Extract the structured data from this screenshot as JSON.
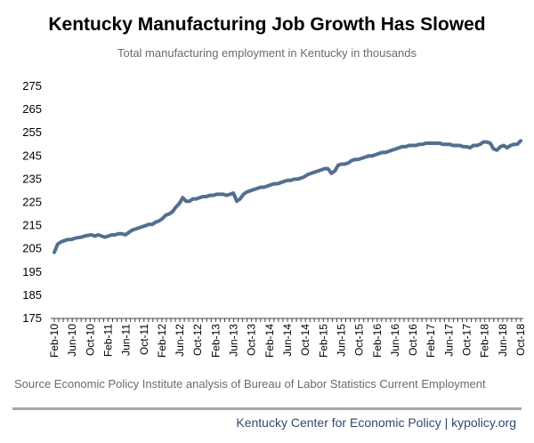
{
  "page": {
    "source": "Source Economic Policy Institute analysis of Bureau of Labor Statistics Current Employment",
    "footer": "Kentucky Center for Economic Policy | kypolicy.org"
  },
  "colors": {
    "line": "#536f90",
    "axis": "#404040",
    "text": "#000000",
    "subtitle": "#6b6b6b",
    "footer": "#2e4a6b"
  },
  "chart_data": {
    "type": "line",
    "title": "Kentucky Manufacturing Job Growth Has Slowed",
    "subtitle": "Total manufacturing employment in Kentucky in thousands",
    "xlabel": "",
    "ylabel": "",
    "ylim": [
      175,
      275
    ],
    "yticks": [
      175,
      185,
      195,
      205,
      215,
      225,
      235,
      245,
      255,
      265,
      275
    ],
    "grid": false,
    "legend": "none",
    "x_tick_labels": [
      "Feb-10",
      "Jun-10",
      "Oct-10",
      "Feb-11",
      "Jun-11",
      "Oct-11",
      "Feb-12",
      "Jun-12",
      "Oct-12",
      "Feb-13",
      "Jun-13",
      "Oct-13",
      "Feb-14",
      "Jun-14",
      "Oct-14",
      "Feb-15",
      "Jun-15",
      "Oct-15",
      "Feb-16",
      "Jun-16",
      "Oct-16",
      "Feb-17",
      "Jun-17",
      "Oct-17",
      "Feb-18",
      "Jun-18",
      "Oct-18"
    ],
    "series": [
      {
        "values": [
          203.5,
          207.0,
          208.0,
          208.5,
          209.0,
          209.0,
          209.5,
          209.8,
          210.0,
          210.5,
          210.8,
          211.0,
          210.5,
          211.0,
          210.5,
          210.0,
          210.5,
          211.0,
          211.0,
          211.5,
          211.5,
          211.0,
          212.0,
          213.0,
          213.5,
          214.0,
          214.5,
          215.0,
          215.5,
          215.5,
          216.5,
          217.0,
          218.0,
          219.5,
          220.0,
          221.0,
          223.0,
          224.5,
          227.0,
          225.5,
          225.5,
          226.5,
          226.5,
          227.0,
          227.5,
          227.5,
          228.0,
          228.0,
          228.5,
          228.5,
          228.5,
          228.0,
          228.5,
          229.0,
          225.5,
          226.5,
          228.5,
          229.5,
          230.0,
          230.5,
          231.0,
          231.5,
          231.5,
          232.0,
          232.5,
          233.0,
          233.0,
          233.5,
          234.0,
          234.5,
          234.5,
          235.0,
          235.0,
          235.5,
          236.0,
          237.0,
          237.5,
          238.0,
          238.5,
          239.0,
          239.5,
          239.5,
          237.5,
          238.5,
          241.0,
          241.5,
          241.5,
          242.0,
          243.0,
          243.5,
          243.5,
          244.0,
          244.5,
          245.0,
          245.0,
          245.5,
          246.0,
          246.5,
          246.5,
          247.0,
          247.5,
          248.0,
          248.5,
          249.0,
          249.0,
          249.5,
          249.5,
          249.5,
          250.0,
          250.0,
          250.5,
          250.5,
          250.5,
          250.5,
          250.5,
          250.0,
          250.0,
          250.0,
          249.5,
          249.5,
          249.5,
          249.0,
          249.0,
          248.5,
          249.5,
          249.5,
          250.0,
          251.0,
          251.0,
          250.5,
          248.0,
          247.5,
          249.0,
          249.5,
          248.5,
          249.5,
          250.0,
          250.0,
          251.5
        ]
      }
    ]
  }
}
